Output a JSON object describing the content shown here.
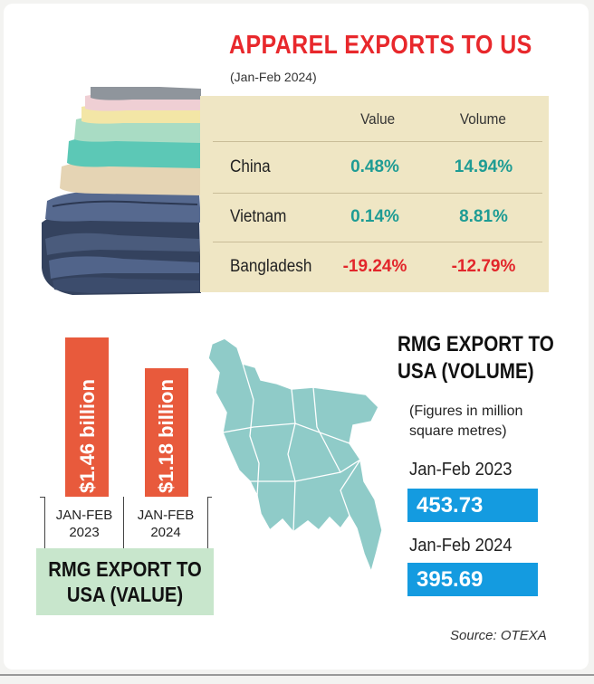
{
  "header": {
    "title": "APPAREL EXPORTS TO US",
    "subtitle": "(Jan-Feb 2024)"
  },
  "table": {
    "columns": [
      "Value",
      "Volume"
    ],
    "rows": [
      {
        "country": "China",
        "value": "0.48%",
        "volume": "14.94%"
      },
      {
        "country": "Vietnam",
        "value": "0.14%",
        "volume": "8.81%"
      },
      {
        "country": "Bangladesh",
        "value": "-19.24%",
        "volume": "-12.79%"
      }
    ]
  },
  "value_chart": {
    "title": "RMG EXPORT TO USA (VALUE)",
    "bars": [
      {
        "label": "$1.46 billion",
        "period_line1": "JAN-FEB",
        "period_line2": "2023"
      },
      {
        "label": "$1.18 billion",
        "period_line1": "JAN-FEB",
        "period_line2": "2024"
      }
    ]
  },
  "volume": {
    "title_line1": "RMG EXPORT TO",
    "title_line2": "USA (VOLUME)",
    "note_line1": "(Figures in million",
    "note_line2": "square metres)",
    "items": [
      {
        "period": "Jan-Feb 2023",
        "value": "453.73"
      },
      {
        "period": "Jan-Feb 2024",
        "value": "395.69"
      }
    ]
  },
  "source": "Source: OTEXA",
  "colors": {
    "title": "#e8282c",
    "positive": "#1e9c94",
    "negative": "#e2262b",
    "bar": "#e85a3c",
    "volume_box": "#149be0",
    "table_panel": "#efe6c4",
    "value_panel": "#c8e6cc",
    "map": "#8fcbc8"
  },
  "icons": [
    "folded-clothes-image",
    "bangladesh-map"
  ],
  "chart_data": [
    {
      "type": "bar",
      "title": "RMG EXPORT TO USA (VALUE)",
      "categories": [
        "JAN-FEB 2023",
        "JAN-FEB 2024"
      ],
      "values": [
        1.46,
        1.18
      ],
      "unit": "billion USD",
      "labels": [
        "$1.46 billion",
        "$1.18 billion"
      ]
    },
    {
      "type": "table",
      "title": "APPAREL EXPORTS TO US",
      "columns": [
        "Value",
        "Volume"
      ],
      "rows": [
        "China",
        "Vietnam",
        "Bangladesh"
      ],
      "values": [
        [
          0.48,
          14.94
        ],
        [
          0.14,
          8.81
        ],
        [
          -19.24,
          -12.79
        ]
      ],
      "unit": "%"
    },
    {
      "type": "table",
      "title": "RMG EXPORT TO USA (VOLUME)",
      "categories": [
        "Jan-Feb 2023",
        "Jan-Feb 2024"
      ],
      "values": [
        453.73,
        395.69
      ],
      "unit": "million square metres"
    }
  ]
}
